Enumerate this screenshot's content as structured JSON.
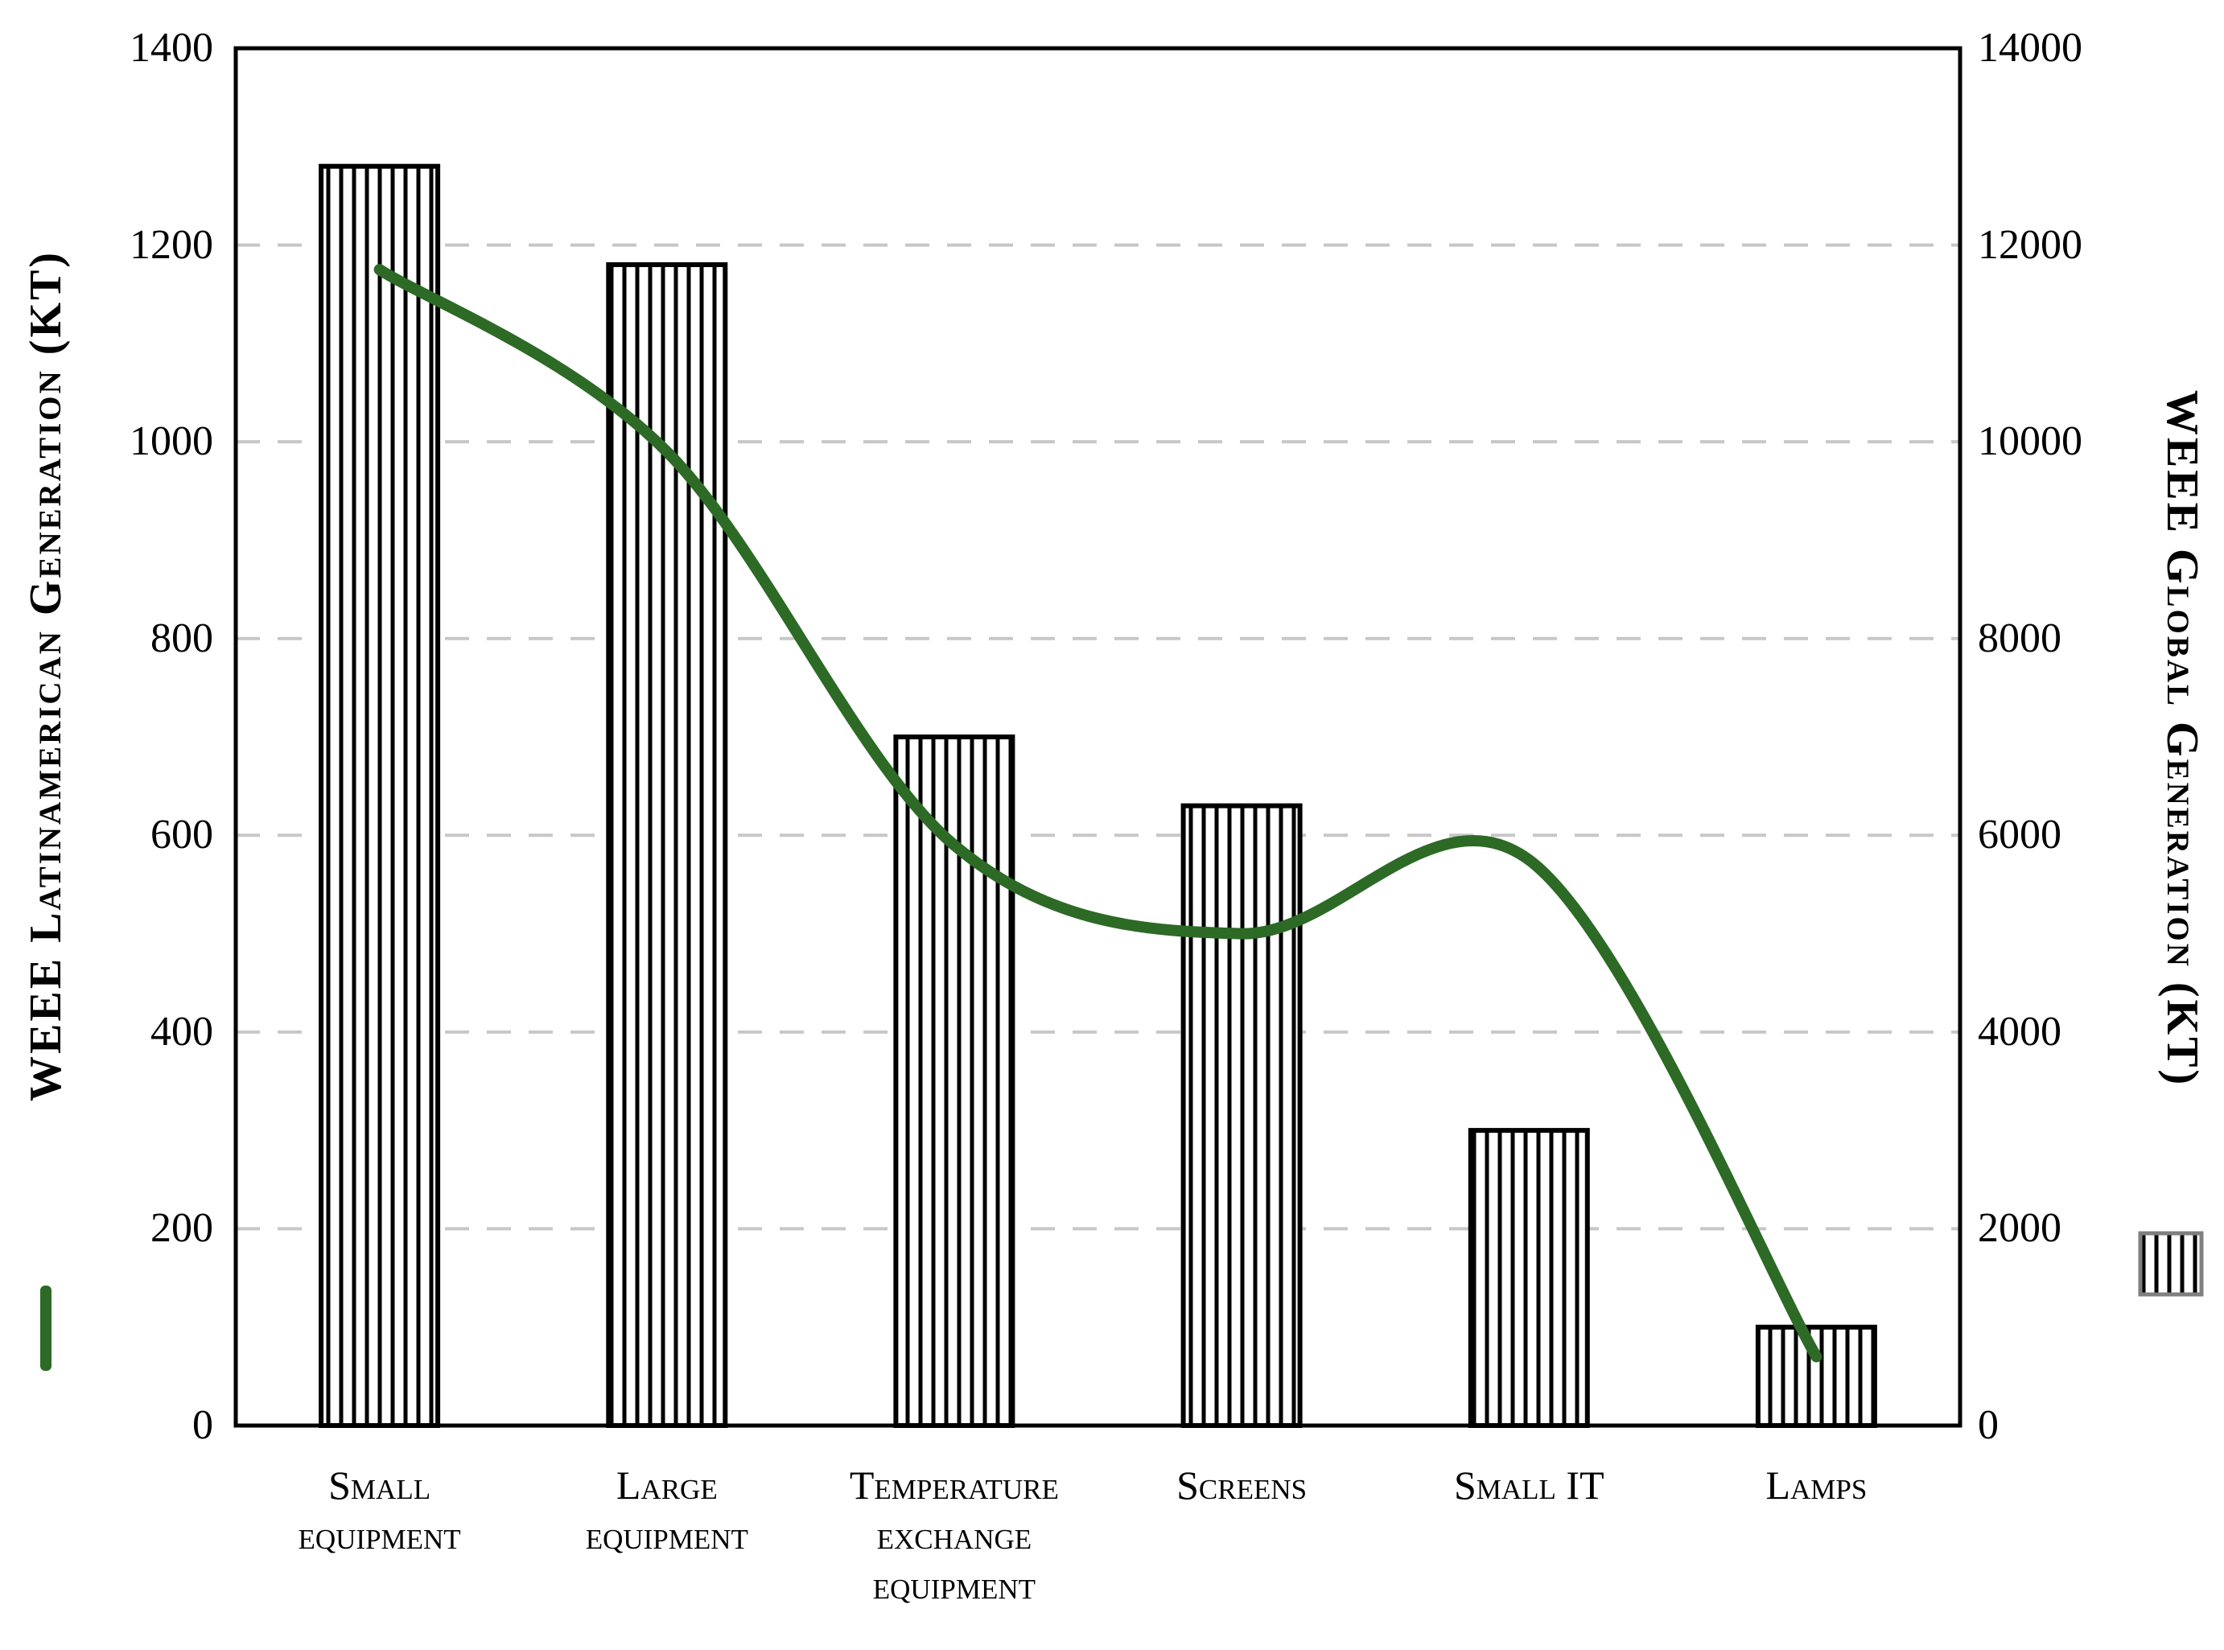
{
  "chart_data": {
    "type": "bar",
    "subtype": "bar+line combo, dual axis",
    "categories": [
      "Small equipment",
      "Large equipment",
      "Temperature exchange equipment",
      "Screens",
      "Small IT",
      "Lamps"
    ],
    "series": [
      {
        "name": "WEEE Global Generation (KT)",
        "type": "bar",
        "axis": "right",
        "marker": "white bar with vertical black hatching",
        "values": [
          12800,
          11800,
          7000,
          6300,
          3000,
          1000
        ]
      },
      {
        "name": "WEEE Latinamerican Generation (KT)",
        "type": "line",
        "axis": "left",
        "marker": "smooth thick dark-green line",
        "values": [
          1175,
          990,
          590,
          500,
          575,
          70
        ]
      }
    ],
    "left_axis": {
      "label": "WEEE Latinamerican Generation (KT)",
      "min": 0,
      "max": 1400,
      "tick_step": 200,
      "tick_labels": [
        "0",
        "200",
        "400",
        "600",
        "800",
        "1000",
        "1200",
        "1400"
      ]
    },
    "right_axis": {
      "label": "WEEE Global Generation (KT)",
      "min": 0,
      "max": 14000,
      "tick_step": 2000,
      "tick_labels": [
        "0",
        "2000",
        "4000",
        "6000",
        "8000",
        "10000",
        "12000",
        "14000"
      ]
    },
    "grid": "horizontal dashed gridlines at every 200 (left axis) / 2000 (right axis)",
    "legend": {
      "line_key": "green vertical line segment below left axis title",
      "bar_key": "hatched square below right axis title"
    }
  },
  "colors": {
    "line_green": "#2c6a26",
    "bar_fill": "#ffffff",
    "bar_stroke": "#000000",
    "grid": "#c7c7c7",
    "frame": "#000000",
    "text": "#000000",
    "legend_box_stroke": "#7f7f7f",
    "background": "#ffffff"
  }
}
